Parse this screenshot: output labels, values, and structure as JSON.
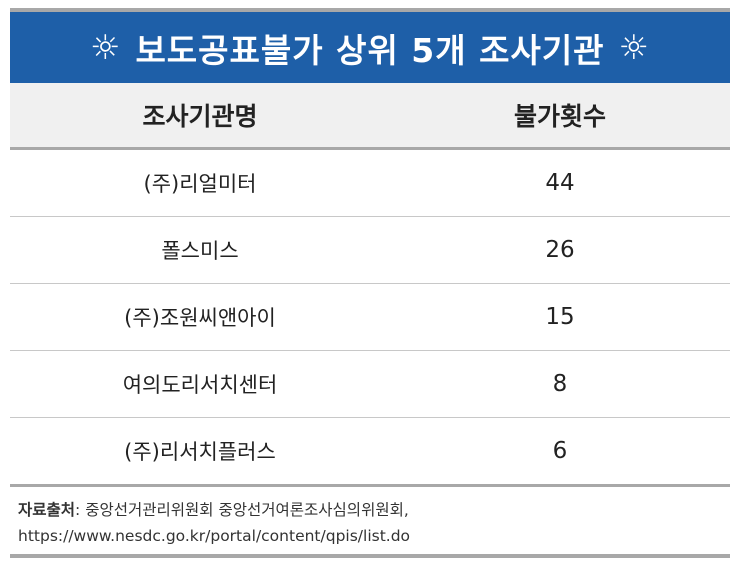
{
  "title": {
    "text": "보도공표불가 상위 5개 조사기관",
    "left_icon": "☼",
    "right_icon": "☼"
  },
  "table": {
    "headers": [
      "조사기관명",
      "불가횟수"
    ],
    "rows": [
      {
        "name": "(주)리얼미터",
        "count": "44"
      },
      {
        "name": "폴스미스",
        "count": "26"
      },
      {
        "name": "(주)조원씨앤아이",
        "count": "15"
      },
      {
        "name": "여의도리서치센터",
        "count": "8"
      },
      {
        "name": "(주)리서치플러스",
        "count": "6"
      }
    ]
  },
  "source": {
    "label": "자료출처",
    "sep": ": ",
    "text": "중앙선거관리위원회 중앙선거여론조사심의위원회,",
    "url": "https://www.nesdc.go.kr/portal/content/qpis/list.do"
  },
  "colors": {
    "title_bg": "#1e5fa8",
    "header_bg": "#f0f0f0",
    "rule": "#a8a8a8"
  }
}
